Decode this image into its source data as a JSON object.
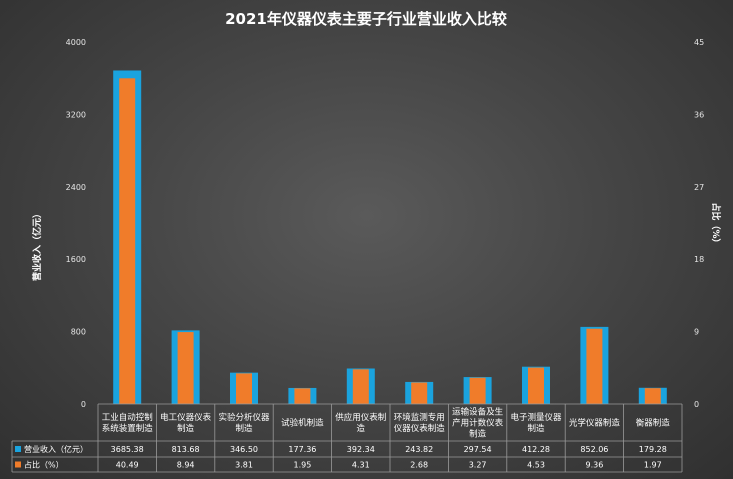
{
  "chart_data": {
    "type": "bar",
    "title": "2021年仪器仪表主要子行业营业收入比较",
    "ylabel": "营业收入（亿元）",
    "y2label": "占比（%）",
    "ylim": [
      0,
      4000
    ],
    "yticks": [
      0,
      800,
      1600,
      2400,
      3200,
      4000
    ],
    "y2lim": [
      0,
      45
    ],
    "y2ticks": [
      0,
      9,
      18,
      27,
      36,
      45
    ],
    "grid": false,
    "legend": "bottom-left table",
    "categories": [
      [
        "工业自动控制",
        "系统装置制造"
      ],
      [
        "电工仪器仪表",
        "制造"
      ],
      [
        "实验分析仪器",
        "制造"
      ],
      [
        "试验机制造"
      ],
      [
        "供应用仪表制",
        "造"
      ],
      [
        "环境监测专用",
        "仪器仪表制造"
      ],
      [
        "运输设备及生",
        "产用计数仪表",
        "制造"
      ],
      [
        "电子测量仪器",
        "制造"
      ],
      [
        "光学仪器制造"
      ],
      [
        "衡器制造"
      ]
    ],
    "series": [
      {
        "name": "营业收入（亿元）",
        "axis": "left",
        "color": "#1aa3de",
        "values": [
          3685.38,
          813.68,
          346.5,
          177.36,
          392.34,
          243.82,
          297.54,
          412.28,
          852.06,
          179.28
        ],
        "labels": [
          "3685.38",
          "813.68",
          "346.50",
          "177.36",
          "392.34",
          "243.82",
          "297.54",
          "412.28",
          "852.06",
          "179.28"
        ]
      },
      {
        "name": "占比（%）",
        "axis": "right",
        "color": "#f07c2a",
        "values": [
          40.49,
          8.94,
          3.81,
          1.95,
          4.31,
          2.68,
          3.27,
          4.53,
          9.36,
          1.97
        ],
        "labels": [
          "40.49",
          "8.94",
          "3.81",
          "1.95",
          "4.31",
          "2.68",
          "3.27",
          "4.53",
          "9.36",
          "1.97"
        ]
      }
    ]
  }
}
